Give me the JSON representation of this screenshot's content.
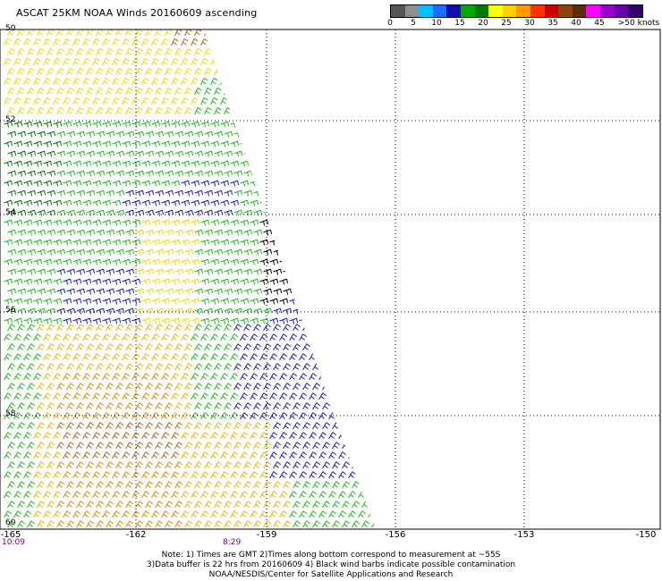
{
  "title": "ASCAT 25KM NOAA Winds 20160609 ascending",
  "colorbar": {
    "colors": [
      "#555555",
      "#8f8f8f",
      "#00bfff",
      "#1e6bff",
      "#1111aa",
      "#00aa00",
      "#007a00",
      "#ffff00",
      "#ffd000",
      "#ff9900",
      "#ff3300",
      "#cc0000",
      "#8b4513",
      "#5a2d0c",
      "#ff00ff",
      "#9900cc",
      "#6600aa",
      "#330066"
    ],
    "labels": [
      "0",
      "5",
      "10",
      "15",
      "20",
      "25",
      "30",
      "35",
      "40",
      "45",
      ">50 knots"
    ]
  },
  "axes": {
    "lat_labels": [
      "50",
      "52",
      "54",
      "56",
      "58",
      "60"
    ],
    "lon_labels": [
      "-165",
      "-162",
      "-159",
      "-156",
      "-153",
      "-150"
    ]
  },
  "times": [
    "10:09",
    "8:29"
  ],
  "notes": [
    "Note: 1) Times are GMT 2)Times along bottom correspond to measurement at ~55S",
    "3)Data buffer is 22 hrs from 20160609 4) Black wind barbs indicate possible contamination",
    "NOAA/NESDIS/Center for Satellite Applications and Research"
  ],
  "wind_colors": {
    "yellow": "#f2d600",
    "gold": "#f0b400",
    "orange": "#dd8a00",
    "brown": "#b5651d",
    "green": "#1dbb1d",
    "dark_green": "#0a6e0a",
    "blue": "#1a1acc",
    "black": "#000000"
  }
}
